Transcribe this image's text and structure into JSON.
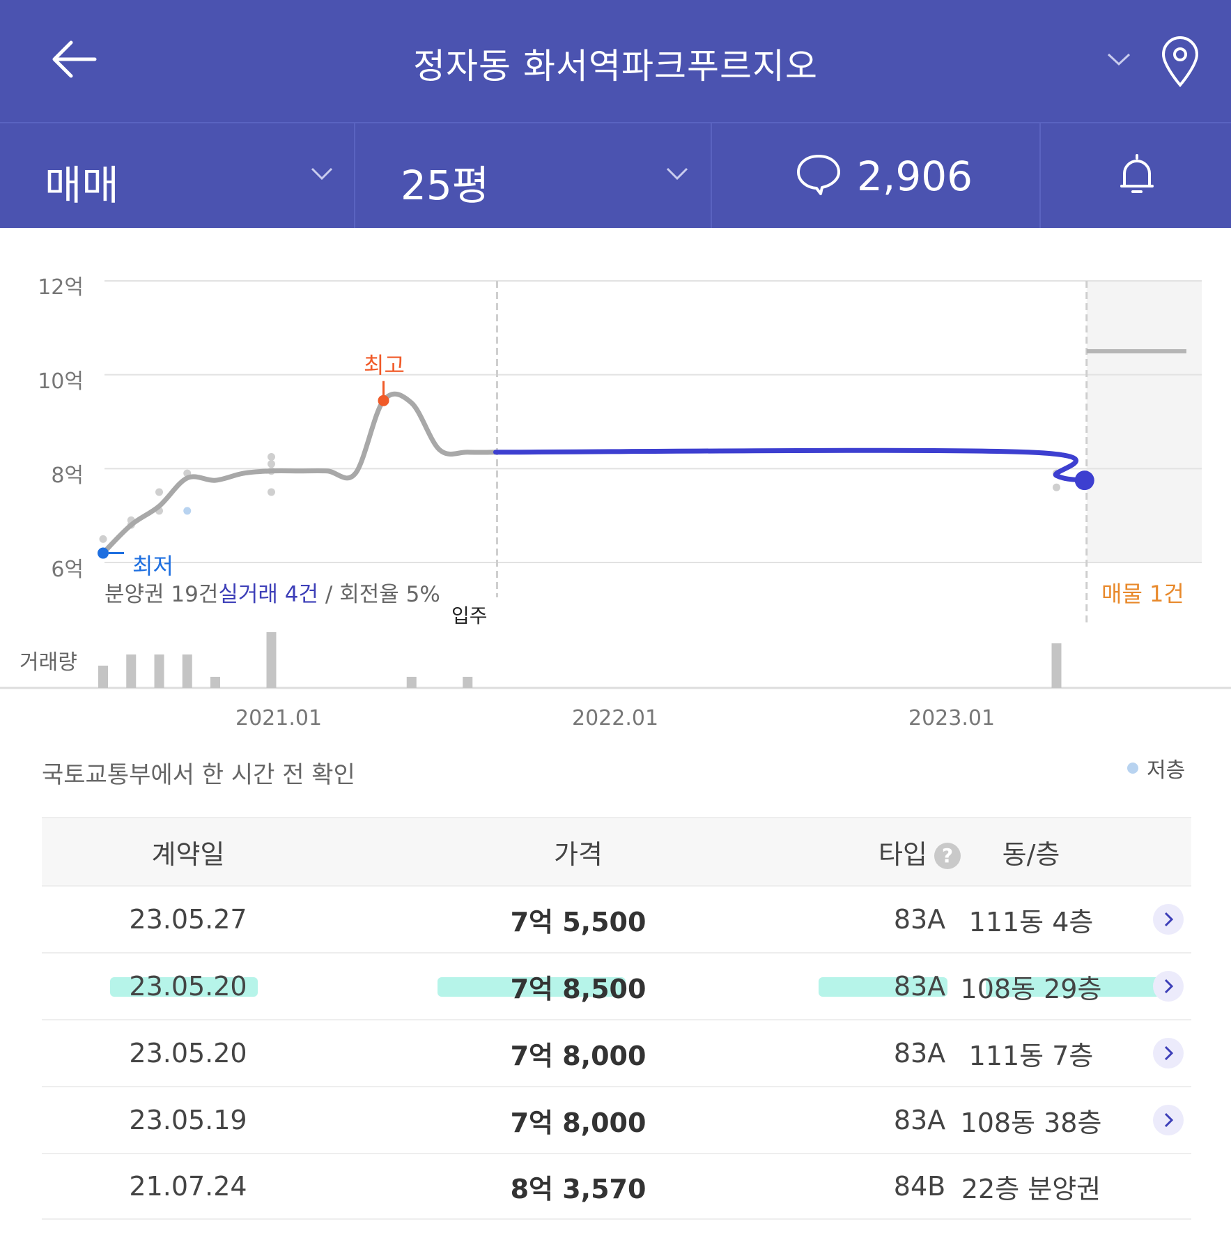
{
  "header": {
    "title": "정자동 화서역파크푸르지오"
  },
  "filters": {
    "trade_type": "매매",
    "size": "25평",
    "comment_count": "2,906"
  },
  "chart_labels": {
    "y_ticks": [
      "12억",
      "10억",
      "8억",
      "6억"
    ],
    "x_ticks": [
      "2021.01",
      "2022.01",
      "2023.01"
    ],
    "high_label": "최고",
    "low_label": "최저",
    "summary_prefix": "분양권 19건",
    "summary_highlight": "실거래 4건",
    "summary_suffix": " / 회전율 5%",
    "movein_label": "입주",
    "listing_label": "매물 1건",
    "volume_label": "거래량"
  },
  "chart_data": {
    "type": "line",
    "ylim": [
      6,
      12
    ],
    "yunit": "억",
    "series": [
      {
        "x": [
          "2020.06",
          "2020.07",
          "2020.08",
          "2020.09",
          "2020.10",
          "2020.11",
          "2020.12",
          "2021.01",
          "2021.02",
          "2021.03",
          "2021.04",
          "2021.05",
          "2021.06",
          "2021.07",
          "2021.08"
        ],
        "values": [
          6.2,
          6.8,
          7.2,
          7.8,
          7.75,
          7.9,
          7.95,
          7.95,
          7.95,
          7.9,
          9.45,
          9.4,
          8.4,
          8.35,
          8.35
        ]
      },
      {
        "x": [
          "2021.08",
          "2023.03",
          "2023.04",
          "2023.05"
        ],
        "values": [
          8.35,
          8.35,
          7.85,
          7.75
        ]
      }
    ],
    "scatter_points": [
      {
        "x": "2020.06",
        "y": 6.5
      },
      {
        "x": "2020.07",
        "y": 6.9
      },
      {
        "x": "2020.07",
        "y": 6.8
      },
      {
        "x": "2020.08",
        "y": 7.5
      },
      {
        "x": "2020.08",
        "y": 7.1
      },
      {
        "x": "2020.09",
        "y": 7.9
      },
      {
        "x": "2020.12",
        "y": 8.25
      },
      {
        "x": "2020.12",
        "y": 8.1
      },
      {
        "x": "2020.12",
        "y": 7.95
      },
      {
        "x": "2020.12",
        "y": 7.5
      },
      {
        "x": "2023.04",
        "y": 7.9
      },
      {
        "x": "2023.04",
        "y": 7.6
      }
    ],
    "low_floor_point": {
      "x": "2020.09",
      "y": 7.1
    },
    "listing_level": 10.5,
    "volume": [
      {
        "x": "2020.06",
        "v": 4
      },
      {
        "x": "2020.07",
        "v": 6
      },
      {
        "x": "2020.08",
        "v": 6
      },
      {
        "x": "2020.09",
        "v": 6
      },
      {
        "x": "2020.10",
        "v": 2
      },
      {
        "x": "2020.12",
        "v": 10
      },
      {
        "x": "2021.05",
        "v": 2
      },
      {
        "x": "2021.07",
        "v": 2
      },
      {
        "x": "2023.04",
        "v": 8
      }
    ]
  },
  "source_note": "국토교통부에서 한 시간 전 확인",
  "legend": {
    "low_floor": "저층"
  },
  "table": {
    "headers": [
      "계약일",
      "가격",
      "타입",
      "동/층"
    ],
    "rows": [
      {
        "date": "23.05.27",
        "price": "7억 5,500",
        "type": "83A",
        "unit": "111동 4층"
      },
      {
        "date": "23.05.20",
        "price": "7억 8,500",
        "type": "83A",
        "unit": "108동 29층"
      },
      {
        "date": "23.05.20",
        "price": "7억 8,000",
        "type": "83A",
        "unit": "111동 7층"
      },
      {
        "date": "23.05.19",
        "price": "7억 8,000",
        "type": "83A",
        "unit": "108동 38층"
      },
      {
        "date": "21.07.24",
        "price": "8억 3,570",
        "type": "84B",
        "unit": "22층 분양권"
      }
    ]
  },
  "colors": {
    "header_bg": "#4b53b0",
    "line_gray": "#a8a8a8",
    "line_blue": "#3d3fd0",
    "high": "#f05a28",
    "low": "#1e6fe0",
    "listing": "#e8892b",
    "highlight": "#a4f1e4"
  }
}
